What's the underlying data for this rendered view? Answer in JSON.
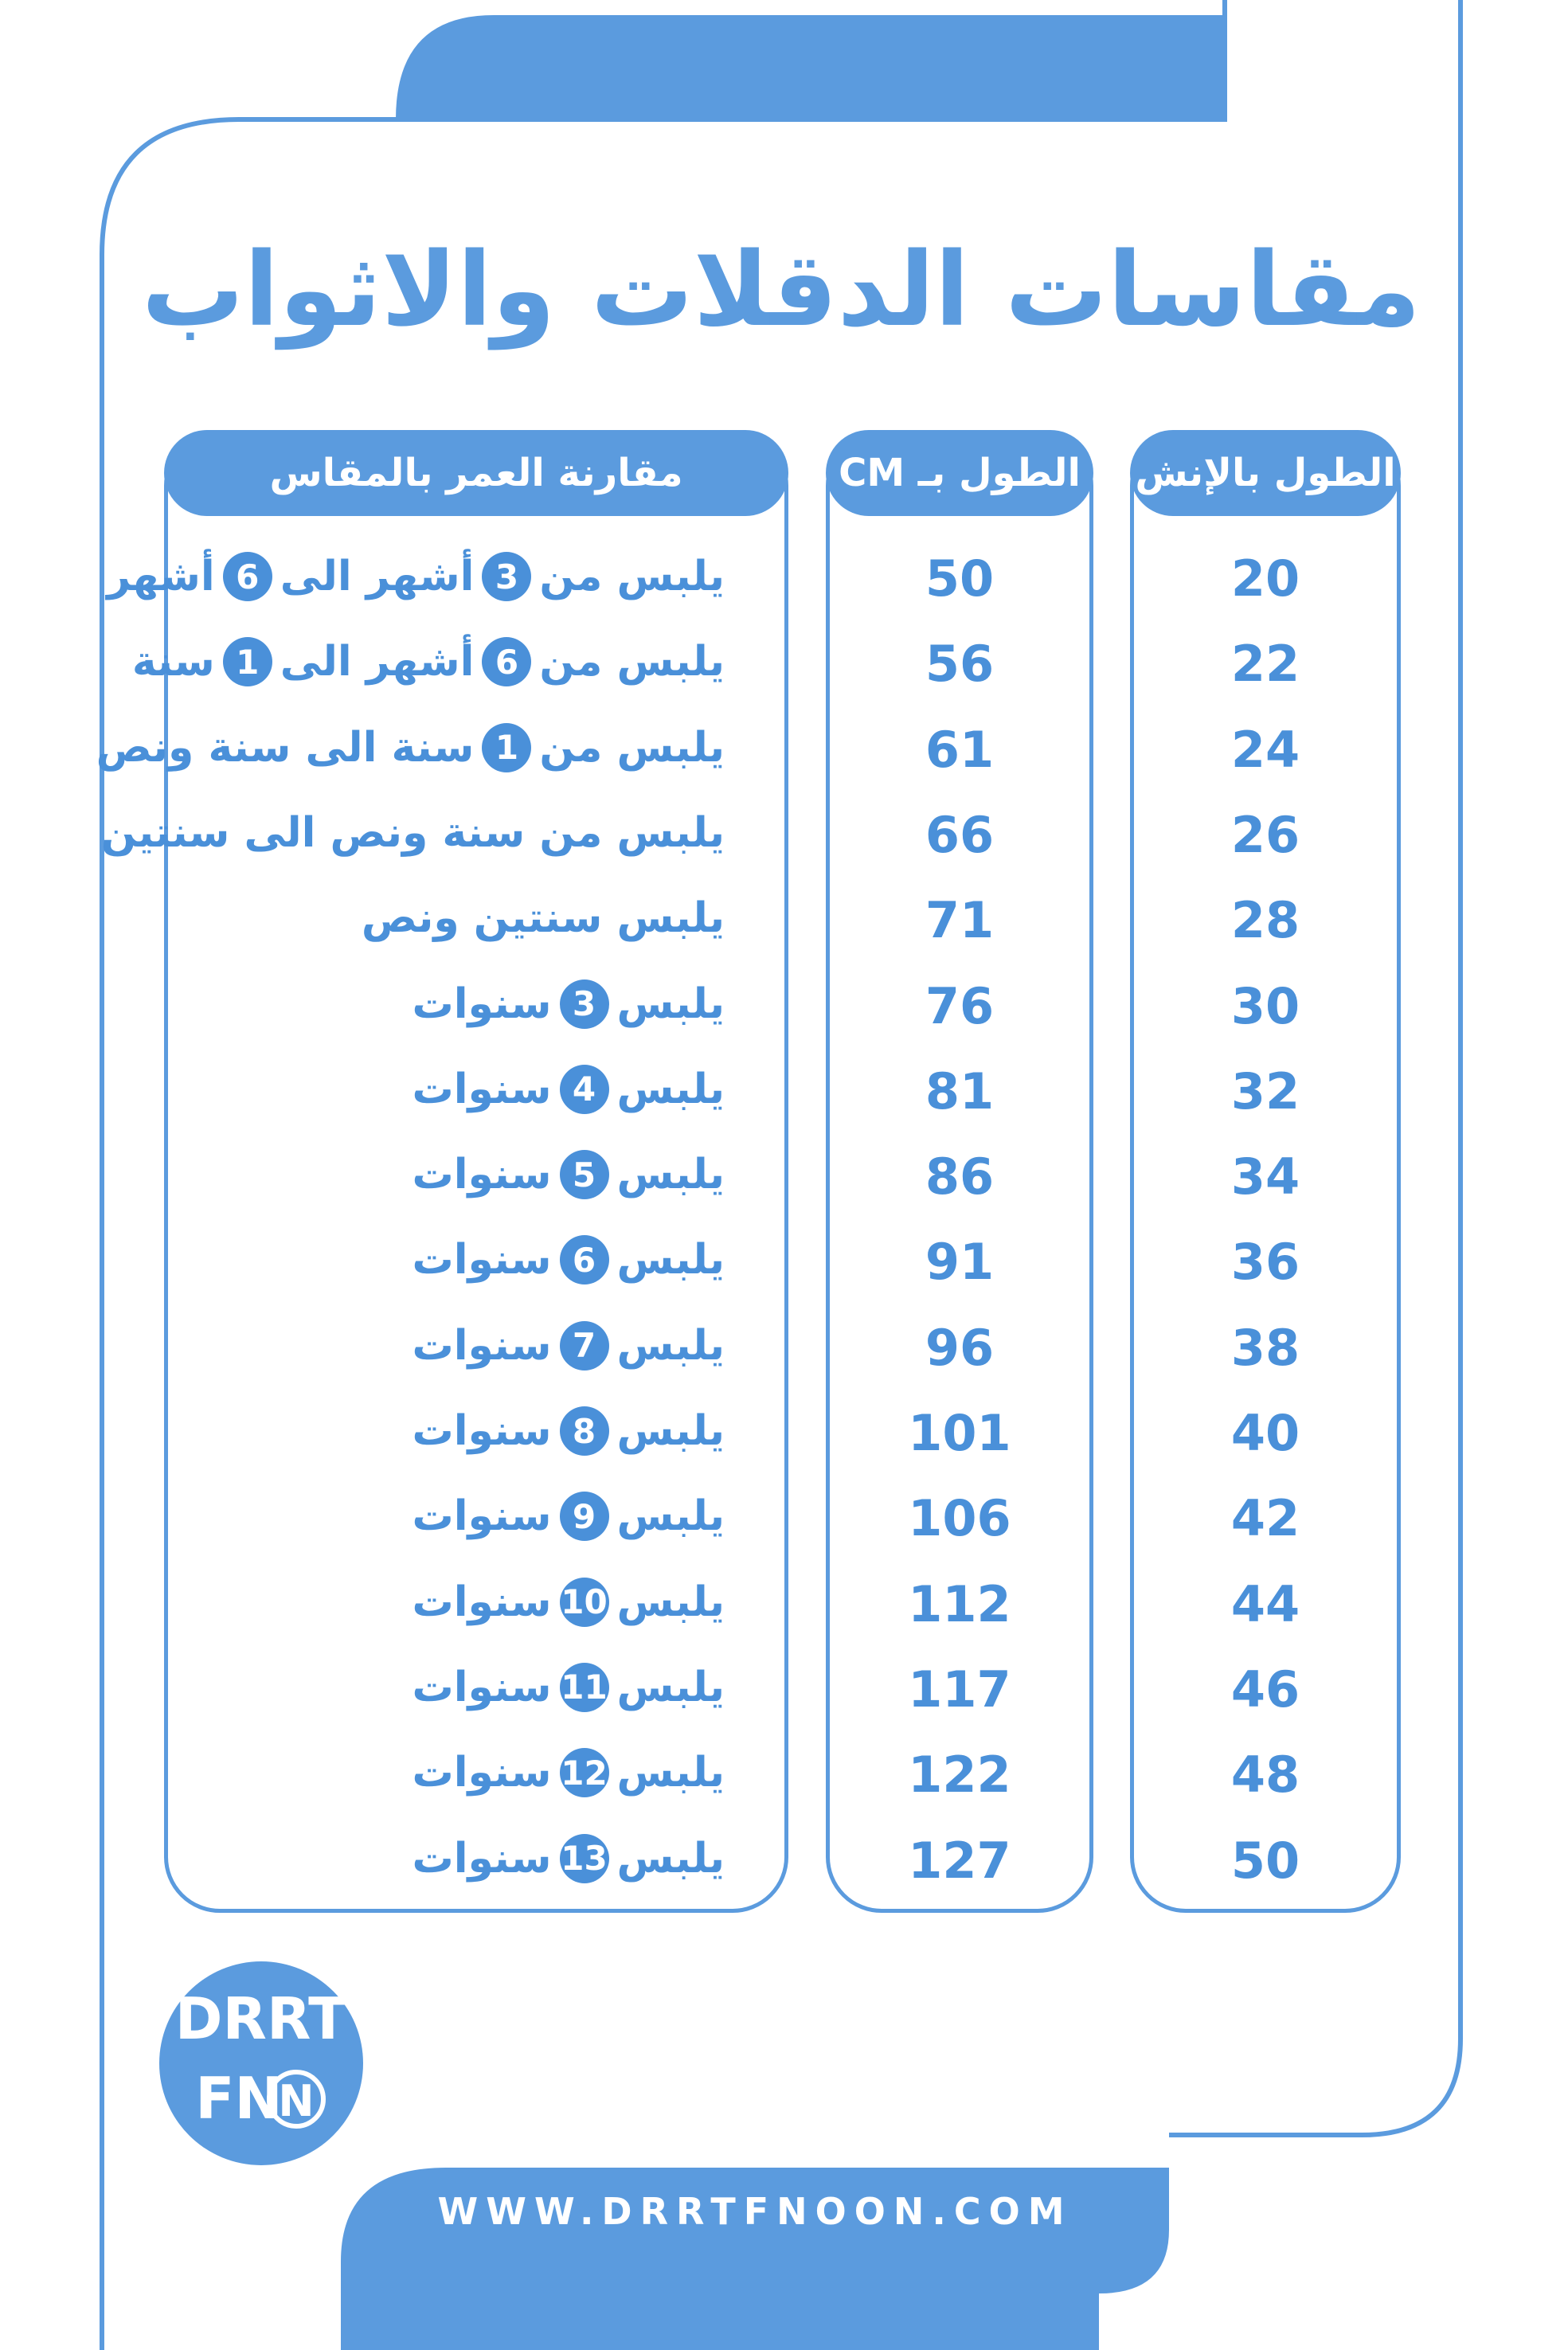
{
  "title": "مقاسات الدقلات والاثواب",
  "table": {
    "headers": [
      "الطول بالإنش",
      "الطول بـ CM",
      "مقارنة العمر بالمقاس"
    ],
    "rows": [
      [
        20,
        50,
        [
          "يلبس من",
          "3",
          "أشهر الى",
          "6",
          "أشهر"
        ]
      ],
      [
        22,
        56,
        [
          "يلبس من",
          "6",
          "أشهر الى",
          "1",
          "سنة"
        ]
      ],
      [
        24,
        61,
        [
          "يلبس من",
          "1",
          "سنة الى سنة ونص"
        ]
      ],
      [
        26,
        66,
        [
          "يلبس من سنة ونص الى سنتين"
        ]
      ],
      [
        28,
        71,
        [
          "يلبس سنتين ونص"
        ]
      ],
      [
        30,
        76,
        [
          "يلبس",
          "3",
          "سنوات"
        ]
      ],
      [
        32,
        81,
        [
          "يلبس",
          "4",
          "سنوات"
        ]
      ],
      [
        34,
        86,
        [
          "يلبس",
          "5",
          "سنوات"
        ]
      ],
      [
        36,
        91,
        [
          "يلبس",
          "6",
          "سنوات"
        ]
      ],
      [
        38,
        96,
        [
          "يلبس",
          "7",
          "سنوات"
        ]
      ],
      [
        40,
        101,
        [
          "يلبس",
          "8",
          "سنوات"
        ]
      ],
      [
        42,
        106,
        [
          "يلبس",
          "9",
          "سنوات"
        ]
      ],
      [
        44,
        112,
        [
          "يلبس",
          "10",
          "سنوات"
        ]
      ],
      [
        46,
        117,
        [
          "يلبس",
          "11",
          "سنوات"
        ]
      ],
      [
        48,
        122,
        [
          "يلبس",
          "12",
          "سنوات"
        ]
      ],
      [
        50,
        127,
        [
          "يلبس",
          "13",
          "سنوات"
        ]
      ]
    ]
  },
  "logo": {
    "line1": "DRRT",
    "line2": "FN",
    "badge": "N"
  },
  "footer": {
    "website": "WWW.DRRTFNOON.COM"
  }
}
